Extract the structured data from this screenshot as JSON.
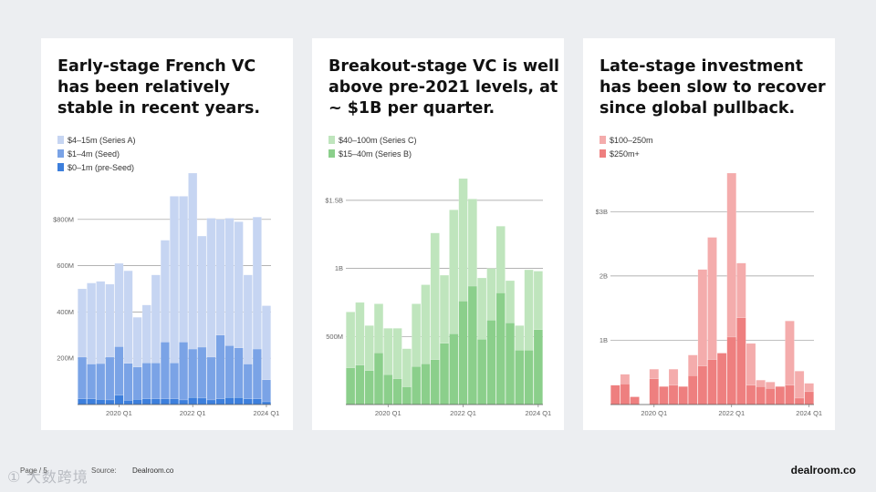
{
  "footer": {
    "page": "Page / 5",
    "source_label": "Source:",
    "source": "Dealroom.co",
    "brand": "dealroom.co",
    "watermark": "① 大数跨境"
  },
  "chart_data": [
    {
      "type": "bar",
      "stacked": true,
      "title": "Early-stage French VC has been relatively stable in recent years.",
      "title_lines": [
        "Early-stage French VC",
        "has been relatively",
        "stable in recent years."
      ],
      "ylim": [
        0,
        1000
      ],
      "gridlines": [
        200,
        400,
        600,
        800
      ],
      "ytick_labels": [
        "200M",
        "400M",
        "600M",
        "$800M"
      ],
      "xtick_labels": [
        {
          "index": 4,
          "label": "2020 Q1"
        },
        {
          "index": 12,
          "label": "2022 Q1"
        },
        {
          "index": 20,
          "label": "2024 Q1"
        }
      ],
      "categories": [
        "2019 Q1",
        "2019 Q2",
        "2019 Q3",
        "2019 Q4",
        "2020 Q1",
        "2020 Q2",
        "2020 Q3",
        "2020 Q4",
        "2021 Q1",
        "2021 Q2",
        "2021 Q3",
        "2021 Q4",
        "2022 Q1",
        "2022 Q2",
        "2022 Q3",
        "2022 Q4",
        "2023 Q1",
        "2023 Q2",
        "2023 Q3",
        "2023 Q4",
        "2024 Q1"
      ],
      "series": [
        {
          "name": "$0–1m (pre-Seed)",
          "color": "#3d7fdc",
          "values": [
            25,
            25,
            22,
            20,
            40,
            18,
            22,
            25,
            25,
            25,
            25,
            20,
            30,
            28,
            20,
            25,
            30,
            30,
            25,
            25,
            12
          ]
        },
        {
          "name": "$1–4m (Seed)",
          "color": "#7aa3e6",
          "values": [
            180,
            150,
            155,
            185,
            210,
            160,
            140,
            155,
            155,
            245,
            155,
            250,
            210,
            220,
            185,
            275,
            225,
            215,
            150,
            215,
            95
          ]
        },
        {
          "name": "$4–15m (Series A)",
          "color": "#c6d5f2",
          "values": [
            295,
            350,
            355,
            315,
            360,
            400,
            215,
            250,
            380,
            440,
            720,
            630,
            760,
            480,
            600,
            500,
            550,
            545,
            385,
            570,
            320
          ]
        }
      ]
    },
    {
      "type": "bar",
      "stacked": true,
      "title": "Breakout-stage VC is well above pre-2021 levels, at ~ $1B per quarter.",
      "title_lines": [
        "Breakout-stage VC is well",
        "above pre-2021 levels, at",
        "~ $1B per quarter."
      ],
      "ylim": [
        0,
        1700
      ],
      "gridlines": [
        500,
        1000,
        1500
      ],
      "ytick_labels": [
        "500M",
        "1B",
        "$1.5B"
      ],
      "xtick_labels": [
        {
          "index": 4,
          "label": "2020 Q1"
        },
        {
          "index": 12,
          "label": "2022 Q1"
        },
        {
          "index": 20,
          "label": "2024 Q1"
        }
      ],
      "categories": [
        "2019 Q1",
        "2019 Q2",
        "2019 Q3",
        "2019 Q4",
        "2020 Q1",
        "2020 Q2",
        "2020 Q3",
        "2020 Q4",
        "2021 Q1",
        "2021 Q2",
        "2021 Q3",
        "2021 Q4",
        "2022 Q1",
        "2022 Q2",
        "2022 Q3",
        "2022 Q4",
        "2023 Q1",
        "2023 Q2",
        "2023 Q3",
        "2023 Q4",
        "2024 Q1"
      ],
      "series": [
        {
          "name": "$15–40m (Series B)",
          "color": "#8bcf8b",
          "values": [
            270,
            290,
            250,
            380,
            220,
            190,
            130,
            280,
            300,
            330,
            450,
            520,
            760,
            870,
            480,
            620,
            820,
            600,
            400,
            400,
            550
          ]
        },
        {
          "name": "$40–100m (Series C)",
          "color": "#bfe5bd",
          "values": [
            410,
            460,
            330,
            360,
            340,
            370,
            280,
            460,
            580,
            930,
            500,
            910,
            900,
            640,
            450,
            380,
            490,
            310,
            180,
            590,
            430
          ]
        }
      ]
    },
    {
      "type": "bar",
      "stacked": true,
      "title": "Late-stage investment has been slow to recover since global pullback.",
      "title_lines": [
        "Late-stage investment",
        "has been slow to recover",
        "since global pullback."
      ],
      "ylim": [
        0,
        3600
      ],
      "gridlines": [
        1000,
        2000,
        3000
      ],
      "ytick_labels": [
        "1B",
        "2B",
        "$3B"
      ],
      "xtick_labels": [
        {
          "index": 4,
          "label": "2020 Q1"
        },
        {
          "index": 12,
          "label": "2022 Q1"
        },
        {
          "index": 20,
          "label": "2024 Q1"
        }
      ],
      "categories": [
        "2019 Q1",
        "2019 Q2",
        "2019 Q3",
        "2019 Q4",
        "2020 Q1",
        "2020 Q2",
        "2020 Q3",
        "2020 Q4",
        "2021 Q1",
        "2021 Q2",
        "2021 Q3",
        "2021 Q4",
        "2022 Q1",
        "2022 Q2",
        "2022 Q3",
        "2022 Q4",
        "2023 Q1",
        "2023 Q2",
        "2023 Q3",
        "2023 Q4",
        "2024 Q1"
      ],
      "series": [
        {
          "name": "$250m+",
          "color": "#ee7f7f",
          "values": [
            300,
            320,
            120,
            0,
            400,
            280,
            300,
            280,
            450,
            600,
            700,
            800,
            1050,
            1350,
            300,
            280,
            250,
            280,
            300,
            100,
            200
          ]
        },
        {
          "name": "$100–250m",
          "color": "#f4acac",
          "values": [
            0,
            150,
            0,
            0,
            150,
            0,
            250,
            0,
            320,
            1500,
            1900,
            0,
            2550,
            850,
            650,
            100,
            100,
            0,
            1000,
            420,
            130
          ]
        }
      ]
    }
  ]
}
